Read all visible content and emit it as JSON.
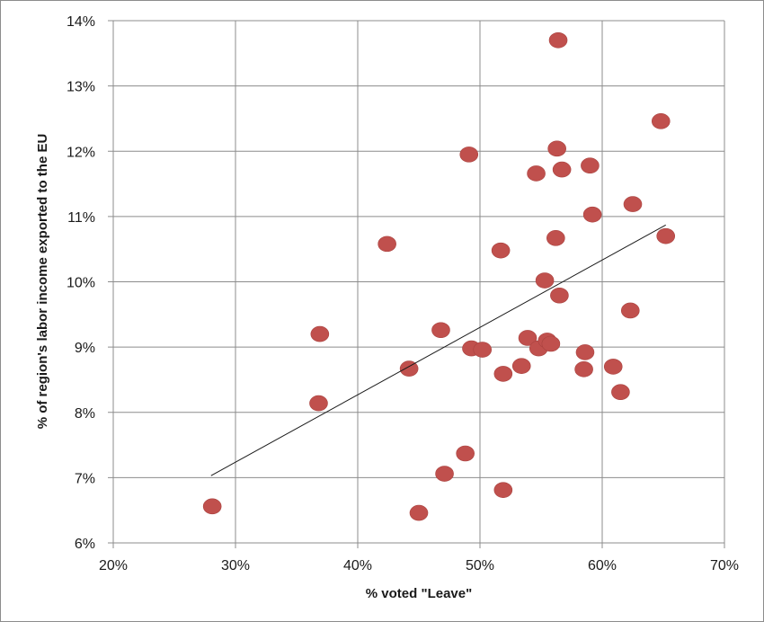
{
  "chart_data": {
    "type": "scatter",
    "title": "",
    "xlabel": "% voted \"Leave\"",
    "ylabel": "% of region's labor income exported to the EU",
    "xlim": [
      0.2,
      0.7
    ],
    "ylim": [
      0.06,
      0.14
    ],
    "x_ticks": [
      0.2,
      0.3,
      0.4,
      0.5,
      0.6,
      0.7
    ],
    "x_tick_labels": [
      "20%",
      "30%",
      "40%",
      "50%",
      "60%",
      "70%"
    ],
    "y_ticks": [
      0.06,
      0.07,
      0.08,
      0.09,
      0.1,
      0.11,
      0.12,
      0.13,
      0.14
    ],
    "y_tick_labels": [
      "6%",
      "7%",
      "8%",
      "9%",
      "10%",
      "11%",
      "12%",
      "13%",
      "14%"
    ],
    "grid": true,
    "legend": "none",
    "marker_color": "#c0504d",
    "trendline": {
      "type": "linear",
      "x": [
        0.28,
        0.652
      ],
      "y": [
        0.0703,
        0.1087
      ],
      "color": "#1a1a1a"
    },
    "points": [
      {
        "x": 0.281,
        "y": 0.0656
      },
      {
        "x": 0.368,
        "y": 0.0814
      },
      {
        "x": 0.369,
        "y": 0.092
      },
      {
        "x": 0.424,
        "y": 0.1058
      },
      {
        "x": 0.442,
        "y": 0.0867
      },
      {
        "x": 0.45,
        "y": 0.0646
      },
      {
        "x": 0.468,
        "y": 0.0926
      },
      {
        "x": 0.471,
        "y": 0.0706
      },
      {
        "x": 0.488,
        "y": 0.0737
      },
      {
        "x": 0.491,
        "y": 0.1195
      },
      {
        "x": 0.493,
        "y": 0.0898
      },
      {
        "x": 0.502,
        "y": 0.0896
      },
      {
        "x": 0.517,
        "y": 0.1048
      },
      {
        "x": 0.519,
        "y": 0.0859
      },
      {
        "x": 0.519,
        "y": 0.0681
      },
      {
        "x": 0.534,
        "y": 0.0871
      },
      {
        "x": 0.539,
        "y": 0.0914
      },
      {
        "x": 0.546,
        "y": 0.1166
      },
      {
        "x": 0.548,
        "y": 0.0898
      },
      {
        "x": 0.553,
        "y": 0.1002
      },
      {
        "x": 0.555,
        "y": 0.091
      },
      {
        "x": 0.558,
        "y": 0.0905
      },
      {
        "x": 0.562,
        "y": 0.1067
      },
      {
        "x": 0.563,
        "y": 0.1204
      },
      {
        "x": 0.564,
        "y": 0.137
      },
      {
        "x": 0.565,
        "y": 0.0979
      },
      {
        "x": 0.567,
        "y": 0.1172
      },
      {
        "x": 0.585,
        "y": 0.0866
      },
      {
        "x": 0.586,
        "y": 0.0892
      },
      {
        "x": 0.59,
        "y": 0.1178
      },
      {
        "x": 0.592,
        "y": 0.1103
      },
      {
        "x": 0.609,
        "y": 0.087
      },
      {
        "x": 0.615,
        "y": 0.0831
      },
      {
        "x": 0.623,
        "y": 0.0956
      },
      {
        "x": 0.625,
        "y": 0.1119
      },
      {
        "x": 0.648,
        "y": 0.1246
      },
      {
        "x": 0.652,
        "y": 0.107
      }
    ]
  }
}
